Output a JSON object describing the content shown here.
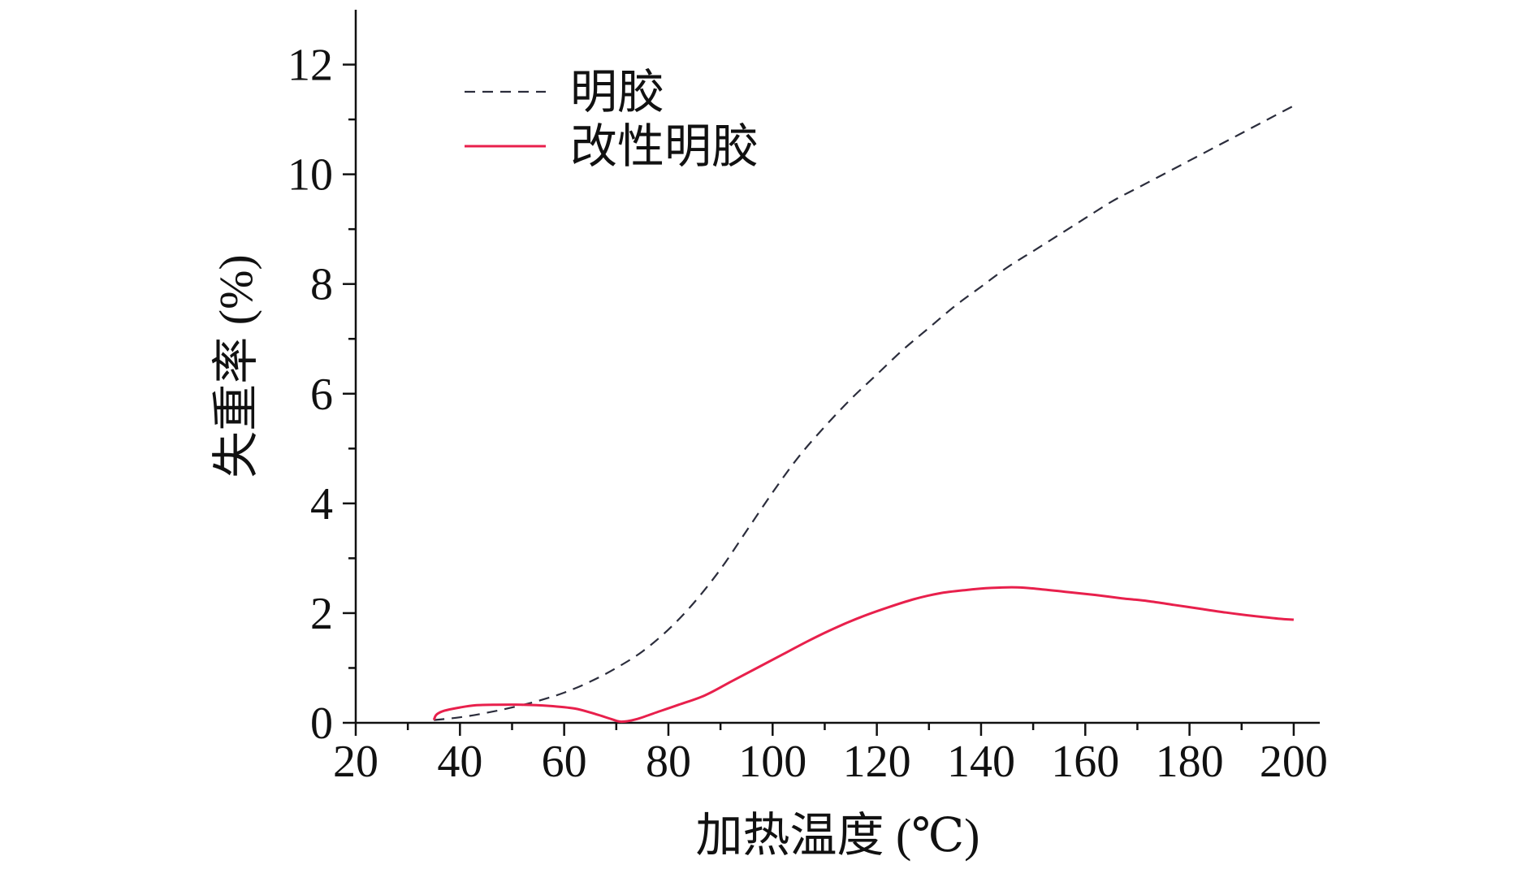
{
  "chart_data": {
    "type": "line",
    "title": "",
    "xlabel": "加热温度 (℃)",
    "ylabel": "失重率 (%)",
    "xlim": [
      20,
      205
    ],
    "ylim": [
      0,
      13
    ],
    "xticks": [
      20,
      40,
      60,
      80,
      100,
      120,
      140,
      160,
      180,
      200
    ],
    "xtick_labels": [
      "20",
      "40",
      "60",
      "80",
      "100",
      "120",
      "140",
      "160",
      "180",
      "200"
    ],
    "yticks": [
      0,
      2,
      4,
      6,
      8,
      10,
      12
    ],
    "ytick_labels": [
      "0",
      "2",
      "4",
      "6",
      "8",
      "10",
      "12"
    ],
    "grid": false,
    "legend_position": "top-left",
    "series": [
      {
        "name": "明胶",
        "color": "#2b2d3c",
        "style": "dashed",
        "x": [
          35,
          40,
          45,
          50,
          55,
          60,
          65,
          70,
          75,
          80,
          85,
          90,
          95,
          100,
          105,
          110,
          115,
          120,
          125,
          130,
          135,
          140,
          145,
          150,
          155,
          160,
          165,
          170,
          175,
          180,
          185,
          190,
          195,
          200
        ],
        "y": [
          0.05,
          0.1,
          0.18,
          0.28,
          0.4,
          0.55,
          0.75,
          1.0,
          1.3,
          1.7,
          2.2,
          2.8,
          3.5,
          4.2,
          4.85,
          5.4,
          5.9,
          6.35,
          6.8,
          7.2,
          7.6,
          7.95,
          8.3,
          8.6,
          8.9,
          9.2,
          9.5,
          9.75,
          10.0,
          10.25,
          10.5,
          10.75,
          11.0,
          11.25
        ]
      },
      {
        "name": "改性明胶",
        "color": "#e8204c",
        "style": "solid",
        "x": [
          35,
          35.5,
          37,
          40,
          43,
          47,
          52,
          57,
          62,
          66,
          69,
          71,
          74,
          78,
          82,
          87,
          92,
          97,
          102,
          107,
          112,
          117,
          122,
          127,
          132,
          137,
          142,
          147,
          152,
          157,
          162,
          167,
          172,
          177,
          182,
          187,
          192,
          197,
          200
        ],
        "y": [
          0.05,
          0.15,
          0.22,
          0.28,
          0.32,
          0.33,
          0.33,
          0.31,
          0.26,
          0.16,
          0.07,
          0.02,
          0.07,
          0.2,
          0.33,
          0.5,
          0.75,
          1.0,
          1.25,
          1.5,
          1.73,
          1.93,
          2.1,
          2.25,
          2.36,
          2.42,
          2.46,
          2.47,
          2.43,
          2.38,
          2.33,
          2.27,
          2.22,
          2.15,
          2.08,
          2.01,
          1.95,
          1.9,
          1.88
        ]
      }
    ]
  }
}
